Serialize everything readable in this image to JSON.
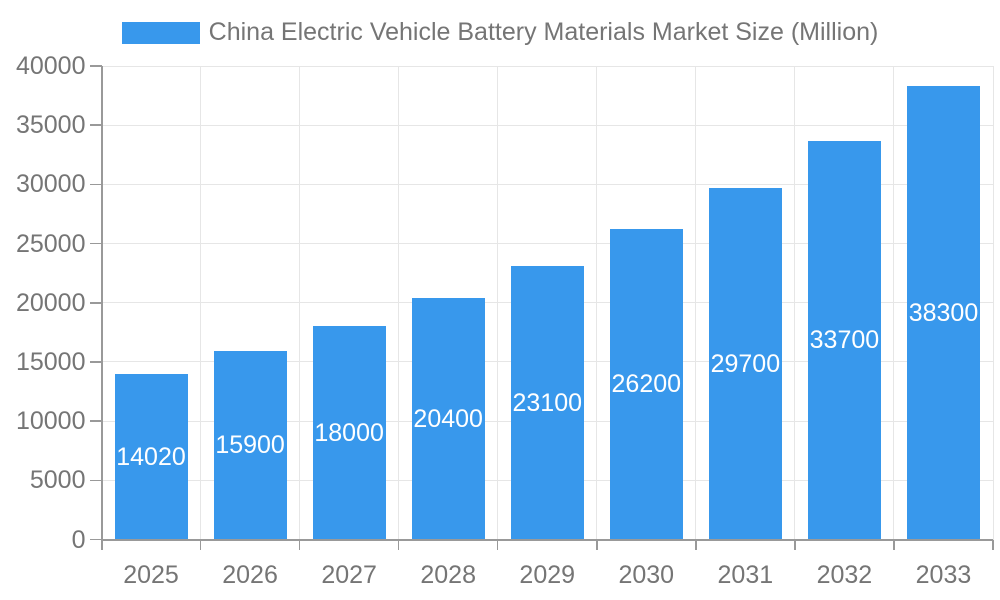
{
  "chart_data": {
    "type": "bar",
    "title": "China Electric Vehicle Battery Materials Market Size (Million)",
    "legend_position": "top-center",
    "categories": [
      "2025",
      "2026",
      "2027",
      "2028",
      "2029",
      "2030",
      "2031",
      "2032",
      "2033"
    ],
    "series": [
      {
        "name": "China Electric Vehicle Battery Materials Market Size (Million)",
        "values": [
          14020,
          15900,
          18000,
          20400,
          23100,
          26200,
          29700,
          33700,
          38300
        ]
      }
    ],
    "bar_value_labels_visible": true,
    "xlabel": "",
    "ylabel": "",
    "ylim": [
      0,
      40000
    ],
    "yticks": [
      0,
      5000,
      10000,
      15000,
      20000,
      25000,
      30000,
      35000,
      40000
    ],
    "grid": true,
    "colors": {
      "bar": "#3898ec",
      "bar_label": "#ffffff",
      "axis_text": "#757575",
      "axis_line": "#999999",
      "gridline": "#e6e6e6",
      "background": "#ffffff"
    }
  }
}
